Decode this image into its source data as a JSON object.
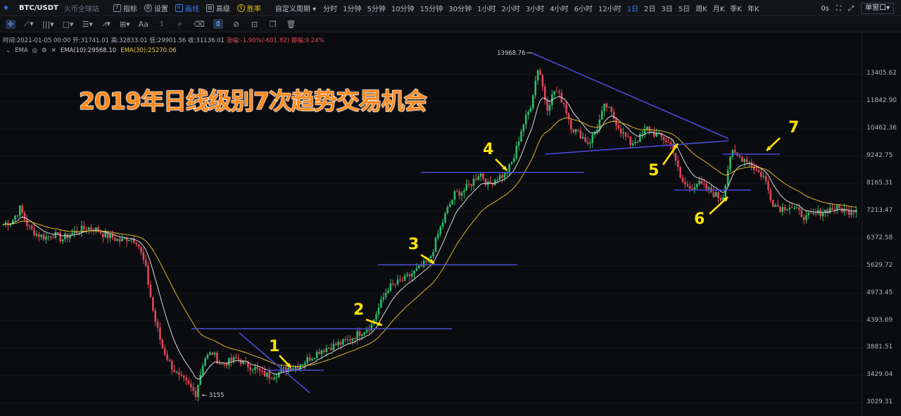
{
  "header": {
    "pair": "BTC/USDT",
    "exchange": "火币全球站",
    "buttons": [
      {
        "label": "指标",
        "icon": "indicator-icon"
      },
      {
        "label": "设置",
        "icon": "gear-icon"
      },
      {
        "label": "画线",
        "icon": "pencil-icon"
      },
      {
        "label": "高级",
        "icon": "advanced-icon"
      },
      {
        "label": "胜率",
        "icon": "winrate-icon"
      }
    ],
    "custom_period": "自定义周期",
    "intervals": [
      "分时",
      "1分钟",
      "5分钟",
      "10分钟",
      "15分钟",
      "30分钟",
      "1小时",
      "2小时",
      "3小时",
      "4小时",
      "6小时",
      "12小时",
      "1日",
      "2日",
      "3日",
      "5日",
      "周K",
      "月K",
      "季K",
      "年K"
    ],
    "selected_interval": "1日",
    "latency": "0s",
    "window_mode": "单窗口"
  },
  "ohlc": {
    "time": "时间:2021-01-05 00:00",
    "open": "开:31741.01",
    "high": "高:32833.01",
    "low": "低:29901.56",
    "close": "收:31136.01",
    "change": "涨幅:-1.90%(-601.82)",
    "amplitude": "振幅:9.24%"
  },
  "indicator": {
    "name": "EMA",
    "ema10": "EMA(10):29568.10",
    "ema30": "EMA(30):25270.06"
  },
  "headline": "2019年日线级别7次趋势交易机会",
  "colors": {
    "up": "#2ebd6b",
    "down": "#e0485b",
    "ema10": "#d9d9d9",
    "ema30": "#d9b62f",
    "lines": "#4a4ad8",
    "annot": "#ffe300"
  },
  "annotations": [
    "1",
    "2",
    "3",
    "4",
    "5",
    "6",
    "7"
  ],
  "chart_data": {
    "type": "candlestick",
    "y_axis_ticks": [
      "13405.62",
      "11842.90",
      "10462.36",
      "9242.75",
      "8165.31",
      "7213.47",
      "6372.58",
      "5629.72",
      "4973.45",
      "4393.69",
      "3881.51",
      "3429.04",
      "3029.31"
    ],
    "yscale": "log",
    "ylim": [
      2900,
      15200
    ],
    "high_label": "13968.76",
    "low_label": "3155",
    "close_path": [
      6800,
      6900,
      7300,
      6700,
      6500,
      6400,
      6500,
      6350,
      6500,
      6600,
      6700,
      6650,
      6500,
      6400,
      6300,
      6400,
      6300,
      5600,
      4500,
      3900,
      3600,
      3400,
      3300,
      3155,
      3700,
      3800,
      3600,
      3650,
      3700,
      3600,
      3550,
      3450,
      3420,
      3480,
      3550,
      3580,
      3650,
      3750,
      3850,
      3900,
      3950,
      4000,
      4100,
      4200,
      4300,
      4700,
      5100,
      5200,
      5300,
      5450,
      5600,
      5800,
      6500,
      7200,
      7800,
      7900,
      8200,
      8600,
      8100,
      8400,
      8500,
      9100,
      10500,
      11500,
      13968,
      11500,
      12500,
      11800,
      10500,
      10200,
      9800,
      10500,
      11700,
      11000,
      10300,
      9800,
      10000,
      10500,
      10200,
      10000,
      9700,
      8300,
      8000,
      8200,
      8000,
      7800,
      7600,
      9400,
      9200,
      9100,
      8700,
      8400,
      7500,
      7300,
      7400,
      7200,
      7000,
      7100,
      7200,
      7300,
      7300,
      7200,
      7300
    ]
  },
  "overlay_lines": [
    {
      "name": "resistance-1"
    },
    {
      "name": "resistance-2"
    },
    {
      "name": "resistance-3"
    },
    {
      "name": "resistance-4"
    },
    {
      "name": "triangle-upper"
    },
    {
      "name": "triangle-lower"
    },
    {
      "name": "support-6"
    },
    {
      "name": "resistance-7"
    },
    {
      "name": "downtrend-1"
    },
    {
      "name": "base-1"
    }
  ]
}
